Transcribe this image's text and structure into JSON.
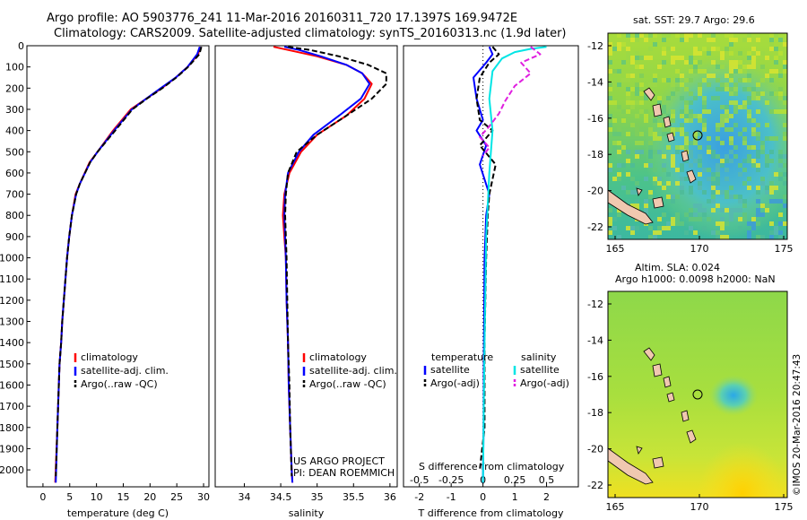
{
  "header": {
    "line1": "Argo profile: AO 5903776_241 11-Mar-2016 20160311_720 17.1397S 169.9472E",
    "line2": "Climatology: CARS2009. Satellite-adjusted climatology: synTS_20160313.nc (1.9d later)"
  },
  "map_sst": {
    "title": "sat. SST: 29.7 Argo: 29.6",
    "lat_ticks": [
      "-12",
      "-14",
      "-16",
      "-18",
      "-20",
      "-22"
    ],
    "lon_ticks": [
      "165",
      "170",
      "175"
    ]
  },
  "map_sla": {
    "title1": "Altim. SLA: 0.024",
    "title2": "Argo h1000: 0.0098 h2000: NaN",
    "lat_ticks": [
      "-12",
      "-14",
      "-16",
      "-18",
      "-20",
      "-22"
    ],
    "lon_ticks": [
      "165",
      "170",
      "175"
    ]
  },
  "footer_stamp": "©IMOS 20-Mar-2016 20:47:43",
  "project": {
    "line1": "US ARGO PROJECT",
    "line2": "PI: DEAN ROEMMICH"
  },
  "colors": {
    "climatology": "#ff0000",
    "satellite": "#0000ff",
    "argo": "#000000",
    "sal_satellite": "#00e5e5",
    "sal_argo": "#e020e0"
  },
  "chart_data": [
    {
      "type": "line",
      "xlabel": "temperature (deg C)",
      "ylabel": "",
      "xlim": [
        -3,
        31
      ],
      "ylim": [
        2080,
        0
      ],
      "x_ticks": [
        0,
        5,
        10,
        15,
        20,
        25,
        30
      ],
      "y_ticks": [
        0,
        100,
        200,
        300,
        400,
        500,
        600,
        700,
        800,
        900,
        1000,
        1100,
        1200,
        1300,
        1400,
        1500,
        1600,
        1700,
        1800,
        1900,
        2000
      ],
      "legend": {
        "position": "lower-center",
        "entries": [
          "climatology",
          "satellite-adj. clim.",
          "Argo(..raw -QC)"
        ]
      },
      "series": [
        {
          "name": "climatology",
          "x": [
            29.3,
            29.0,
            27.0,
            24.8,
            22.2,
            19.3,
            16.4,
            13.1,
            10.2,
            8.7,
            6.9,
            6.1,
            5.4,
            4.9,
            4.5,
            4.2,
            3.9,
            3.6,
            3.4,
            3.1,
            2.7,
            2.3
          ],
          "y": [
            5,
            40,
            100,
            150,
            200,
            250,
            300,
            400,
            500,
            550,
            650,
            700,
            800,
            900,
            1000,
            1100,
            1200,
            1300,
            1400,
            1500,
            1800,
            2060
          ]
        },
        {
          "name": "satellite-adj. clim.",
          "x": [
            29.3,
            28.8,
            27.0,
            24.8,
            22.0,
            19.3,
            16.6,
            13.3,
            10.2,
            8.8,
            6.9,
            6.2,
            5.4,
            4.9,
            4.5,
            4.2,
            3.9,
            3.6,
            3.4,
            3.1,
            2.7,
            2.4
          ],
          "y": [
            5,
            40,
            100,
            150,
            200,
            250,
            300,
            400,
            500,
            550,
            650,
            700,
            800,
            900,
            1000,
            1100,
            1200,
            1300,
            1400,
            1500,
            1800,
            2060
          ]
        },
        {
          "name": "Argo(..raw -QC)",
          "x": [
            29.6,
            29.2,
            27.1,
            24.9,
            22.3,
            19.4,
            16.7,
            13.5,
            10.2,
            8.8,
            6.9,
            6.2,
            5.4,
            4.9,
            4.5,
            4.2,
            3.9,
            3.6,
            3.4,
            3.1,
            2.7,
            2.4
          ],
          "y": [
            5,
            40,
            100,
            150,
            200,
            250,
            300,
            400,
            500,
            550,
            650,
            700,
            800,
            900,
            1000,
            1100,
            1200,
            1300,
            1400,
            1500,
            1800,
            2030
          ]
        }
      ]
    },
    {
      "type": "line",
      "xlabel": "salinity",
      "xlim": [
        33.6,
        36.1
      ],
      "ylim": [
        2080,
        0
      ],
      "x_ticks": [
        34,
        34.5,
        35,
        35.5,
        36
      ],
      "legend": {
        "position": "lower-right",
        "entries": [
          "climatology",
          "satellite-adj. clim.",
          "Argo(..raw -QC)"
        ]
      },
      "series": [
        {
          "name": "climatology",
          "x": [
            34.4,
            34.6,
            35.0,
            35.4,
            35.62,
            35.75,
            35.65,
            35.4,
            35.0,
            34.78,
            34.62,
            34.55,
            34.53,
            34.55,
            34.57,
            34.58,
            34.6,
            34.61,
            34.63,
            34.65,
            34.66
          ],
          "y": [
            5,
            20,
            50,
            90,
            130,
            180,
            250,
            330,
            420,
            500,
            600,
            700,
            800,
            900,
            1000,
            1200,
            1400,
            1600,
            1800,
            2000,
            2060
          ]
        },
        {
          "name": "satellite-adj. clim.",
          "x": [
            34.55,
            34.75,
            35.05,
            35.4,
            35.62,
            35.72,
            35.6,
            35.3,
            34.95,
            34.75,
            34.6,
            34.56,
            34.55,
            34.56,
            34.57,
            34.58,
            34.6,
            34.61,
            34.63,
            34.65,
            34.66
          ],
          "y": [
            5,
            20,
            50,
            90,
            130,
            180,
            250,
            330,
            420,
            500,
            600,
            700,
            800,
            900,
            1000,
            1200,
            1400,
            1600,
            1800,
            2000,
            2060
          ]
        },
        {
          "name": "Argo(..raw -QC)",
          "x": [
            34.6,
            34.9,
            35.3,
            35.7,
            35.95,
            35.95,
            35.75,
            35.4,
            35.0,
            34.72,
            34.6,
            34.57,
            34.56,
            34.57,
            34.58,
            34.59,
            34.6,
            34.62,
            34.63,
            34.65
          ],
          "y": [
            5,
            20,
            50,
            90,
            130,
            180,
            250,
            330,
            420,
            500,
            600,
            700,
            800,
            900,
            1000,
            1200,
            1400,
            1600,
            1800,
            2030
          ]
        }
      ]
    },
    {
      "type": "line",
      "xlabel": "T difference from climatology",
      "xlabel2": "S difference from climatology",
      "xlim": [
        -2.5,
        3
      ],
      "ylim": [
        2080,
        0
      ],
      "x_ticks": [
        -2,
        -1,
        0,
        1,
        2
      ],
      "x_ticks_top": [
        -0.5,
        -0.25,
        0,
        0.25,
        0.5
      ],
      "legend": {
        "position": "lower-center",
        "entries": [
          "temperature",
          "satellite",
          "Argo(-adj)",
          "salinity",
          "satellite",
          "Argo(-adj)"
        ]
      },
      "series": [
        {
          "name": "temperature satellite",
          "x": [
            0.2,
            0.3,
            0.1,
            -0.3,
            -0.2,
            0.0,
            -0.2,
            0.1,
            -0.1,
            0.2,
            0.1,
            0.05,
            0.03,
            0.02,
            0.0
          ],
          "y": [
            5,
            40,
            80,
            150,
            250,
            350,
            400,
            470,
            560,
            700,
            800,
            1000,
            1400,
            1800,
            2060
          ]
        },
        {
          "name": "temperature Argo(-adj)",
          "x": [
            0.3,
            0.5,
            0.2,
            -0.1,
            -0.2,
            -0.1,
            0.3,
            -0.1,
            0.4,
            0.2,
            0.15,
            0.1,
            0.05,
            0.05,
            -0.1
          ],
          "y": [
            5,
            40,
            80,
            150,
            250,
            350,
            400,
            470,
            560,
            700,
            800,
            1000,
            1400,
            1800,
            2000
          ]
        },
        {
          "name": "salinity satellite",
          "x": [
            2.0,
            1.5,
            1.0,
            0.6,
            0.3,
            0.2,
            0.3,
            0.2,
            0.1,
            0.05,
            0.0
          ],
          "y": [
            5,
            15,
            30,
            60,
            120,
            250,
            400,
            600,
            900,
            1400,
            2060
          ]
        },
        {
          "name": "salinity Argo(-adj)",
          "x": [
            1.5,
            1.8,
            1.2,
            1.5,
            1.0,
            0.7,
            0.5,
            0.2,
            -0.1,
            0.2,
            0.0
          ],
          "y": [
            5,
            40,
            80,
            130,
            190,
            260,
            320,
            380,
            430,
            480,
            520
          ]
        }
      ]
    }
  ]
}
